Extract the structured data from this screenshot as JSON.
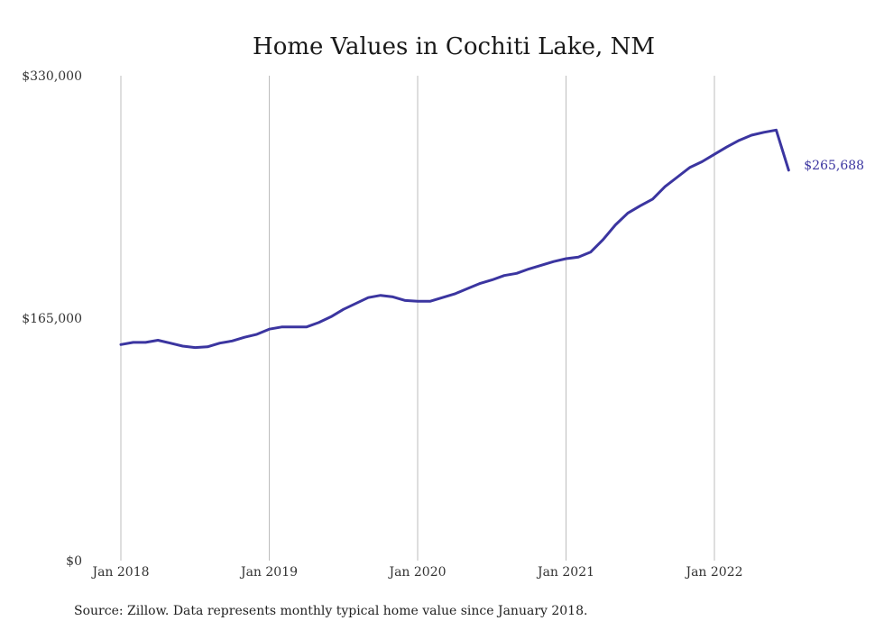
{
  "chart_data": {
    "type": "line",
    "title": "Home Values in Cochiti Lake, NM",
    "xlabel": "",
    "ylabel": "",
    "x_ticks": [
      "Jan 2018",
      "Jan 2019",
      "Jan 2020",
      "Jan 2021",
      "Jan 2022"
    ],
    "y_ticks": [
      "$0",
      "$165,000",
      "$330,000"
    ],
    "ylim": [
      0,
      330000
    ],
    "grid": true,
    "line_color": "#3b35a0",
    "end_label": "$265,688",
    "source": "Source: Zillow. Data represents monthly typical home value since January 2018.",
    "series": [
      {
        "x": [
          "2018-01",
          "2018-02",
          "2018-03",
          "2018-04",
          "2018-05",
          "2018-06",
          "2018-07",
          "2018-08",
          "2018-09",
          "2018-10",
          "2018-11",
          "2018-12",
          "2019-01",
          "2019-02",
          "2019-03",
          "2019-04",
          "2019-05",
          "2019-06",
          "2019-07",
          "2019-08",
          "2019-09",
          "2019-10",
          "2019-11",
          "2019-12",
          "2020-01",
          "2020-02",
          "2020-03",
          "2020-04",
          "2020-05",
          "2020-06",
          "2020-07",
          "2020-08",
          "2020-09",
          "2020-10",
          "2020-11",
          "2020-12",
          "2021-01",
          "2021-02",
          "2021-03",
          "2021-04",
          "2021-05",
          "2021-06",
          "2021-07",
          "2021-08",
          "2021-09",
          "2021-10",
          "2021-11",
          "2021-12",
          "2022-01",
          "2022-02",
          "2022-03",
          "2022-04",
          "2022-05",
          "2022-06",
          "2022-07"
        ],
        "values": [
          147000,
          148500,
          148500,
          150000,
          148000,
          146000,
          145000,
          145500,
          148000,
          149500,
          152000,
          154000,
          157500,
          159000,
          159000,
          159000,
          162000,
          166000,
          171000,
          175000,
          179000,
          180500,
          179500,
          177000,
          176500,
          176500,
          179000,
          181500,
          185000,
          188500,
          191000,
          194000,
          195500,
          198500,
          201000,
          203500,
          205500,
          206500,
          210000,
          218500,
          228500,
          236500,
          241500,
          246000,
          254500,
          261000,
          267500,
          271500,
          276500,
          281500,
          286000,
          289500,
          291500,
          293000,
          265688
        ]
      }
    ]
  }
}
